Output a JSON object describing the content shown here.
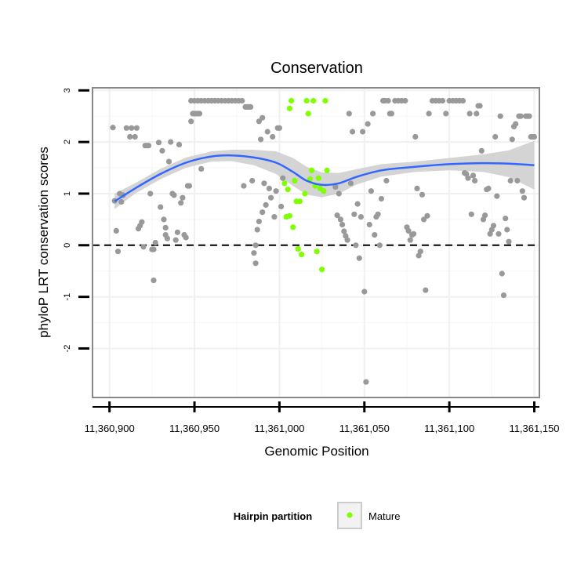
{
  "chart_data": {
    "type": "scatter",
    "title": "Conservation",
    "xlabel": "Genomic Position",
    "ylabel": "phyloP LRT conservation scores",
    "xlim": [
      11360890,
      11361153
    ],
    "ylim": [
      -2.95,
      3.05
    ],
    "x_ticks": [
      {
        "value": 11360900,
        "label": "11,360,900"
      },
      {
        "value": 11360950,
        "label": "11,360,950"
      },
      {
        "value": 11361000,
        "label": "11,361,000"
      },
      {
        "value": 11361050,
        "label": "11,361,050"
      },
      {
        "value": 11361100,
        "label": "11,361,100"
      },
      {
        "value": 11361150,
        "label": "11,361,150"
      }
    ],
    "y_ticks": [
      {
        "value": -2,
        "label": "-2"
      },
      {
        "value": -1,
        "label": "-1"
      },
      {
        "value": 0,
        "label": "0"
      },
      {
        "value": 1,
        "label": "1"
      },
      {
        "value": 2,
        "label": "2"
      },
      {
        "value": 3,
        "label": "3"
      }
    ],
    "reference_line": {
      "y": 0,
      "style": "dashed"
    },
    "grid": true,
    "legend": {
      "title": "Hairpin partition",
      "placement": "bottom",
      "entries": [
        {
          "label": "Mature",
          "color": "#7fff00"
        }
      ]
    },
    "colors": {
      "other_points": "#999999",
      "mature_points": "#7fff00",
      "smooth_line": "#3366ff",
      "confidence_band": "#cccccc",
      "panel_border": "#888888"
    },
    "series": [
      {
        "group": "other",
        "points": [
          [
            11360902,
            2.28
          ],
          [
            11360903,
            0.86
          ],
          [
            11360904,
            0.28
          ],
          [
            11360905,
            -0.12
          ],
          [
            11360906,
            1.0
          ],
          [
            11360907,
            0.84
          ],
          [
            11360908,
            0.97
          ],
          [
            11360910,
            2.27
          ],
          [
            11360912,
            2.1
          ],
          [
            11360913,
            2.27
          ],
          [
            11360915,
            2.1
          ],
          [
            11360916,
            2.27
          ],
          [
            11360917,
            0.32
          ],
          [
            11360918,
            0.38
          ],
          [
            11360919,
            0.45
          ],
          [
            11360920,
            -0.03
          ],
          [
            11360921,
            1.93
          ],
          [
            11360922,
            1.93
          ],
          [
            11360923,
            1.93
          ],
          [
            11360924,
            1.0
          ],
          [
            11360925,
            -0.08
          ],
          [
            11360926,
            -0.08
          ],
          [
            11360926,
            -0.68
          ],
          [
            11360927,
            0.05
          ],
          [
            11360929,
            1.99
          ],
          [
            11360930,
            0.74
          ],
          [
            11360931,
            1.83
          ],
          [
            11360932,
            0.5
          ],
          [
            11360933,
            0.2
          ],
          [
            11360933,
            0.34
          ],
          [
            11360934,
            0.13
          ],
          [
            11360935,
            1.62
          ],
          [
            11360936,
            2.0
          ],
          [
            11360937,
            1.0
          ],
          [
            11360938,
            0.97
          ],
          [
            11360939,
            0.1
          ],
          [
            11360940,
            0.25
          ],
          [
            11360941,
            1.95
          ],
          [
            11360942,
            0.82
          ],
          [
            11360943,
            0.92
          ],
          [
            11360944,
            0.2
          ],
          [
            11360945,
            0.15
          ],
          [
            11360946,
            1.15
          ],
          [
            11360947,
            1.15
          ],
          [
            11360948,
            2.4
          ],
          [
            11360949,
            2.55
          ],
          [
            11360950,
            2.55
          ],
          [
            11360951,
            2.55
          ],
          [
            11360952,
            2.55
          ],
          [
            11360953,
            2.55
          ],
          [
            11360954,
            1.48
          ],
          [
            11360948,
            2.8
          ],
          [
            11360950,
            2.8
          ],
          [
            11360952,
            2.8
          ],
          [
            11360954,
            2.8
          ],
          [
            11360956,
            2.8
          ],
          [
            11360958,
            2.8
          ],
          [
            11360960,
            2.8
          ],
          [
            11360962,
            2.8
          ],
          [
            11360964,
            2.8
          ],
          [
            11360966,
            2.8
          ],
          [
            11360968,
            2.8
          ],
          [
            11360970,
            2.8
          ],
          [
            11360972,
            2.8
          ],
          [
            11360974,
            2.8
          ],
          [
            11360976,
            2.8
          ],
          [
            11360978,
            2.8
          ],
          [
            11360979,
            1.15
          ],
          [
            11360980,
            2.68
          ],
          [
            11360981,
            2.68
          ],
          [
            11360982,
            2.68
          ],
          [
            11360983,
            2.68
          ],
          [
            11360984,
            1.25
          ],
          [
            11360985,
            -0.15
          ],
          [
            11360986,
            -0.35
          ],
          [
            11360986,
            0.0
          ],
          [
            11360987,
            0.3
          ],
          [
            11360988,
            0.46
          ],
          [
            11360988,
            2.4
          ],
          [
            11360989,
            2.05
          ],
          [
            11360990,
            0.64
          ],
          [
            11360990,
            2.47
          ],
          [
            11360991,
            1.2
          ],
          [
            11360992,
            0.78
          ],
          [
            11360993,
            2.2
          ],
          [
            11360994,
            1.1
          ],
          [
            11360995,
            0.92
          ],
          [
            11360996,
            2.1
          ],
          [
            11360997,
            0.55
          ],
          [
            11360998,
            1.05
          ],
          [
            11360999,
            2.27
          ],
          [
            11361000,
            2.27
          ],
          [
            11361001,
            0.75
          ],
          [
            11361002,
            1.3
          ],
          [
            11361033,
            1.13
          ],
          [
            11361034,
            0.58
          ],
          [
            11361035,
            1.0
          ],
          [
            11361036,
            0.5
          ],
          [
            11361037,
            0.4
          ],
          [
            11361038,
            0.27
          ],
          [
            11361039,
            0.18
          ],
          [
            11361040,
            0.1
          ],
          [
            11361041,
            2.55
          ],
          [
            11361042,
            1.2
          ],
          [
            11361043,
            2.2
          ],
          [
            11361044,
            0.6
          ],
          [
            11361045,
            0.0
          ],
          [
            11361046,
            0.8
          ],
          [
            11361047,
            -0.25
          ],
          [
            11361048,
            0.55
          ],
          [
            11361049,
            2.2
          ],
          [
            11361050,
            -0.9
          ],
          [
            11361051,
            -2.65
          ],
          [
            11361052,
            2.35
          ],
          [
            11361053,
            0.4
          ],
          [
            11361054,
            1.05
          ],
          [
            11361055,
            2.55
          ],
          [
            11361056,
            0.2
          ],
          [
            11361057,
            0.55
          ],
          [
            11361058,
            0.6
          ],
          [
            11361059,
            0.0
          ],
          [
            11361060,
            0.9
          ],
          [
            11361061,
            2.8
          ],
          [
            11361062,
            2.8
          ],
          [
            11361063,
            1.25
          ],
          [
            11361064,
            2.8
          ],
          [
            11361065,
            2.55
          ],
          [
            11361066,
            2.55
          ],
          [
            11361068,
            2.8
          ],
          [
            11361070,
            2.8
          ],
          [
            11361072,
            2.8
          ],
          [
            11361074,
            2.8
          ],
          [
            11361075,
            0.35
          ],
          [
            11361076,
            0.28
          ],
          [
            11361077,
            0.1
          ],
          [
            11361078,
            0.2
          ],
          [
            11361079,
            0.22
          ],
          [
            11361080,
            2.1
          ],
          [
            11361081,
            1.1
          ],
          [
            11361082,
            -0.2
          ],
          [
            11361083,
            -0.12
          ],
          [
            11361084,
            0.98
          ],
          [
            11361085,
            0.5
          ],
          [
            11361086,
            -0.87
          ],
          [
            11361087,
            0.57
          ],
          [
            11361088,
            2.55
          ],
          [
            11361090,
            2.8
          ],
          [
            11361092,
            2.8
          ],
          [
            11361094,
            2.8
          ],
          [
            11361096,
            2.8
          ],
          [
            11361098,
            2.55
          ],
          [
            11361100,
            2.8
          ],
          [
            11361102,
            2.8
          ],
          [
            11361104,
            2.8
          ],
          [
            11361106,
            2.8
          ],
          [
            11361108,
            2.8
          ],
          [
            11361109,
            1.4
          ],
          [
            11361110,
            1.38
          ],
          [
            11361111,
            1.3
          ],
          [
            11361112,
            2.55
          ],
          [
            11361113,
            0.6
          ],
          [
            11361114,
            1.35
          ],
          [
            11361115,
            1.25
          ],
          [
            11361116,
            2.55
          ],
          [
            11361117,
            2.7
          ],
          [
            11361118,
            2.7
          ],
          [
            11361119,
            1.83
          ],
          [
            11361120,
            0.5
          ],
          [
            11361121,
            0.58
          ],
          [
            11361122,
            1.08
          ],
          [
            11361123,
            1.1
          ],
          [
            11361124,
            0.22
          ],
          [
            11361125,
            0.3
          ],
          [
            11361126,
            0.38
          ],
          [
            11361127,
            2.1
          ],
          [
            11361128,
            0.95
          ],
          [
            11361129,
            0.22
          ],
          [
            11361130,
            2.5
          ],
          [
            11361131,
            -0.55
          ],
          [
            11361132,
            -0.97
          ],
          [
            11361133,
            0.52
          ],
          [
            11361134,
            0.3
          ],
          [
            11361135,
            0.07
          ],
          [
            11361136,
            1.25
          ],
          [
            11361137,
            2.05
          ],
          [
            11361138,
            2.3
          ],
          [
            11361139,
            2.35
          ],
          [
            11361140,
            1.25
          ],
          [
            11361141,
            2.5
          ],
          [
            11361142,
            2.5
          ],
          [
            11361143,
            1.05
          ],
          [
            11361144,
            0.92
          ],
          [
            11361145,
            2.5
          ],
          [
            11361146,
            2.5
          ],
          [
            11361147,
            2.5
          ],
          [
            11361148,
            2.1
          ],
          [
            11361149,
            2.1
          ],
          [
            11361150,
            2.1
          ]
        ]
      },
      {
        "group": "Mature",
        "points": [
          [
            11361003,
            1.2
          ],
          [
            11361004,
            0.55
          ],
          [
            11361005,
            1.08
          ],
          [
            11361006,
            0.57
          ],
          [
            11361006,
            2.65
          ],
          [
            11361007,
            2.8
          ],
          [
            11361008,
            0.35
          ],
          [
            11361009,
            1.25
          ],
          [
            11361010,
            0.85
          ],
          [
            11361011,
            -0.07
          ],
          [
            11361012,
            0.85
          ],
          [
            11361013,
            -0.18
          ],
          [
            11361015,
            1.0
          ],
          [
            11361016,
            2.8
          ],
          [
            11361017,
            2.55
          ],
          [
            11361018,
            1.28
          ],
          [
            11361019,
            1.45
          ],
          [
            11361020,
            2.8
          ],
          [
            11361021,
            1.15
          ],
          [
            11361022,
            -0.12
          ],
          [
            11361023,
            1.3
          ],
          [
            11361024,
            1.1
          ],
          [
            11361025,
            -0.47
          ],
          [
            11361026,
            1.05
          ],
          [
            11361027,
            2.8
          ],
          [
            11361028,
            1.45
          ]
        ]
      }
    ],
    "smooth": {
      "x": [
        11360903,
        11360915,
        11360930,
        11360945,
        11360960,
        11360972,
        11360985,
        11360998,
        11361008,
        11361016,
        11361025,
        11361035,
        11361045,
        11361060,
        11361080,
        11361100,
        11361120,
        11361135,
        11361150
      ],
      "y": [
        0.85,
        1.1,
        1.38,
        1.6,
        1.72,
        1.74,
        1.7,
        1.6,
        1.42,
        1.25,
        1.17,
        1.2,
        1.32,
        1.45,
        1.52,
        1.57,
        1.59,
        1.58,
        1.55
      ],
      "lower": [
        0.7,
        1.0,
        1.28,
        1.5,
        1.62,
        1.63,
        1.55,
        1.38,
        1.15,
        0.98,
        0.93,
        1.0,
        1.17,
        1.33,
        1.42,
        1.45,
        1.42,
        1.32,
        1.08
      ],
      "upper": [
        1.0,
        1.2,
        1.48,
        1.7,
        1.82,
        1.85,
        1.85,
        1.82,
        1.69,
        1.52,
        1.41,
        1.4,
        1.47,
        1.57,
        1.62,
        1.69,
        1.76,
        1.84,
        2.02
      ]
    }
  }
}
